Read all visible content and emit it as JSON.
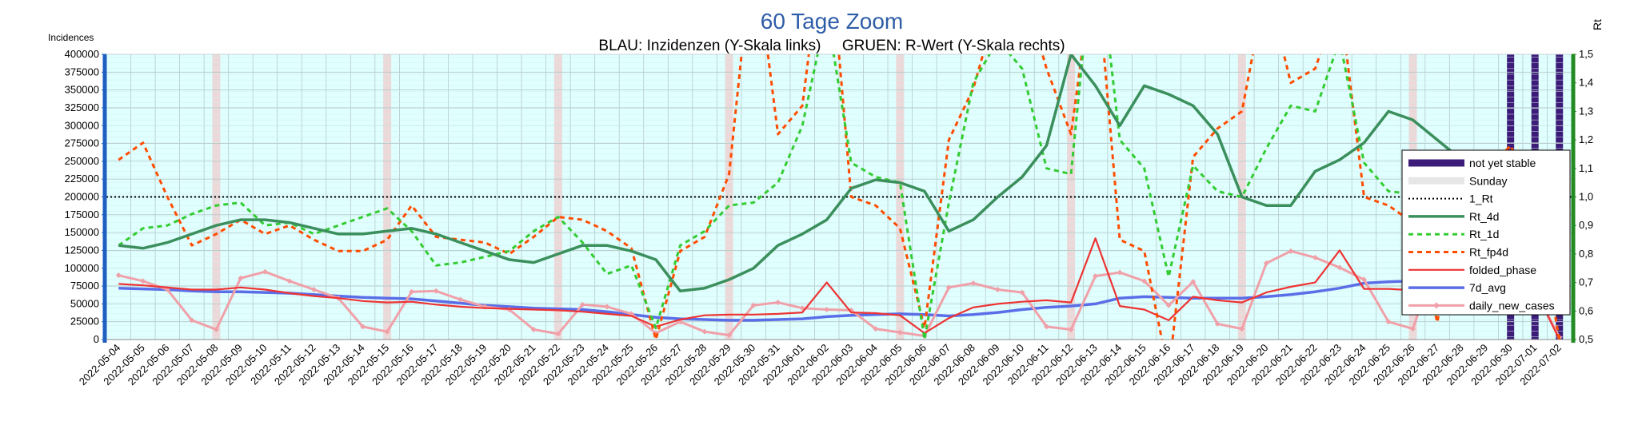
{
  "chart_data": {
    "type": "line",
    "title": "60 Tage Zoom",
    "subtitle": "BLAU: Inzidenzen (Y-Skala links)     GRUEN: R-Wert (Y-Skala rechts)",
    "ylabel_left": "Incidences",
    "ylabel_right": "Rt",
    "ylim_left": [
      0,
      400000
    ],
    "ylim_right": [
      0.5,
      1.5
    ],
    "yticks_left": [
      "0",
      "25000",
      "50000",
      "75000",
      "100000",
      "125000",
      "150000",
      "175000",
      "200000",
      "225000",
      "250000",
      "275000",
      "300000",
      "325000",
      "350000",
      "375000",
      "400000"
    ],
    "yticks_right": [
      "0,5",
      "0,6",
      "0,7",
      "0,8",
      "0,9",
      "1,0",
      "1,1",
      "1,2",
      "1,3",
      "1,4",
      "1,5"
    ],
    "x": [
      "2022-05-04",
      "2022-05-05",
      "2022-05-06",
      "2022-05-07",
      "2022-05-08",
      "2022-05-09",
      "2022-05-10",
      "2022-05-11",
      "2022-05-12",
      "2022-05-13",
      "2022-05-14",
      "2022-05-15",
      "2022-05-16",
      "2022-05-17",
      "2022-05-18",
      "2022-05-19",
      "2022-05-20",
      "2022-05-21",
      "2022-05-22",
      "2022-05-23",
      "2022-05-24",
      "2022-05-25",
      "2022-05-26",
      "2022-05-27",
      "2022-05-28",
      "2022-05-29",
      "2022-05-30",
      "2022-05-31",
      "2022-06-01",
      "2022-06-02",
      "2022-06-03",
      "2022-06-04",
      "2022-06-05",
      "2022-06-06",
      "2022-06-07",
      "2022-06-08",
      "2022-06-09",
      "2022-06-10",
      "2022-06-11",
      "2022-06-12",
      "2022-06-13",
      "2022-06-14",
      "2022-06-15",
      "2022-06-16",
      "2022-06-17",
      "2022-06-18",
      "2022-06-19",
      "2022-06-20",
      "2022-06-21",
      "2022-06-22",
      "2022-06-23",
      "2022-06-24",
      "2022-06-25",
      "2022-06-26",
      "2022-06-27",
      "2022-06-28",
      "2022-06-29",
      "2022-06-30",
      "2022-07-01",
      "2022-07-02"
    ],
    "sundays": [
      "2022-05-08",
      "2022-05-15",
      "2022-05-22",
      "2022-05-29",
      "2022-06-05",
      "2022-06-12",
      "2022-06-19",
      "2022-06-26"
    ],
    "not_yet_stable": [
      "2022-06-30",
      "2022-07-01",
      "2022-07-02"
    ],
    "reference_line": {
      "name": "1_Rt",
      "value": 1.0
    },
    "legend": [
      "not yet stable",
      "Sunday",
      "1_Rt",
      "Rt_4d",
      "Rt_1d",
      "Rt_fp4d",
      "folded_phase",
      "7d_avg",
      "daily_new_cases"
    ],
    "legend_position": "right",
    "grid": true,
    "series": [
      {
        "name": "Rt_4d",
        "axis": "right",
        "color": "#3a8f5c",
        "dash": "",
        "values": [
          0.83,
          0.82,
          0.84,
          0.87,
          0.9,
          0.92,
          0.92,
          0.91,
          0.89,
          0.87,
          0.87,
          0.88,
          0.89,
          0.87,
          0.84,
          0.81,
          0.78,
          0.77,
          0.8,
          0.83,
          0.83,
          0.81,
          0.78,
          0.67,
          0.68,
          0.71,
          0.75,
          0.83,
          0.87,
          0.92,
          1.03,
          1.06,
          1.05,
          1.02,
          0.88,
          0.92,
          1.0,
          1.07,
          1.18,
          1.5,
          1.39,
          1.25,
          1.39,
          1.36,
          1.32,
          1.22,
          1.0,
          0.97,
          0.97,
          1.09,
          1.13,
          1.19,
          1.3,
          1.27,
          1.2,
          1.13,
          1.05,
          1.05,
          1.05,
          0.98
        ]
      },
      {
        "name": "Rt_1d",
        "axis": "right",
        "color": "#33cc33",
        "dash": "6,5",
        "values": [
          0.83,
          0.89,
          0.9,
          0.94,
          0.97,
          0.98,
          0.9,
          0.91,
          0.87,
          0.9,
          0.93,
          0.96,
          0.88,
          0.76,
          0.77,
          0.79,
          0.81,
          0.88,
          0.93,
          0.84,
          0.73,
          0.76,
          0.54,
          0.83,
          0.88,
          0.97,
          0.98,
          1.05,
          1.25,
          1.65,
          1.12,
          1.07,
          1.05,
          0.5,
          0.98,
          1.4,
          1.55,
          1.45,
          1.1,
          1.08,
          1.95,
          1.2,
          1.1,
          0.72,
          1.11,
          1.02,
          1.0,
          1.17,
          1.32,
          1.3,
          1.55,
          1.12,
          1.02,
          1.01,
          1.06,
          1.07,
          1.03,
          0.98,
          0.85,
          0.83
        ]
      },
      {
        "name": "Rt_fp4d",
        "axis": "right",
        "color": "#ff4d00",
        "dash": "6,5",
        "values": [
          1.13,
          1.19,
          1.0,
          0.83,
          0.87,
          0.92,
          0.87,
          0.9,
          0.85,
          0.81,
          0.81,
          0.85,
          0.97,
          0.86,
          0.85,
          0.84,
          0.8,
          0.86,
          0.93,
          0.92,
          0.88,
          0.82,
          0.5,
          0.81,
          0.86,
          1.08,
          1.9,
          1.22,
          1.32,
          2.0,
          1.0,
          0.97,
          0.89,
          0.54,
          1.2,
          1.38,
          1.68,
          1.75,
          1.45,
          1.22,
          1.85,
          0.85,
          0.81,
          0.38,
          1.14,
          1.24,
          1.3,
          1.75,
          1.4,
          1.45,
          1.7,
          1.0,
          0.97,
          0.91,
          0.56,
          1.08,
          1.09,
          1.18,
          0.98,
          0.5
        ]
      },
      {
        "name": "folded_phase",
        "axis": "left",
        "color": "#ee3333",
        "dash": "",
        "values": [
          78000,
          76000,
          73000,
          70000,
          70000,
          73000,
          70000,
          65000,
          61000,
          58000,
          54000,
          52000,
          53000,
          49000,
          46000,
          44000,
          43000,
          42000,
          41000,
          39000,
          36000,
          33000,
          18000,
          28000,
          34000,
          35000,
          35000,
          36000,
          38000,
          80000,
          38000,
          37000,
          34000,
          9000,
          30000,
          45000,
          50000,
          53000,
          55000,
          52000,
          142000,
          47000,
          42000,
          27000,
          60000,
          55000,
          52000,
          66000,
          74000,
          80000,
          125000,
          71000,
          71000,
          69000,
          69000,
          72000,
          76000,
          82000,
          70000,
          0
        ]
      },
      {
        "name": "7d_avg",
        "axis": "left",
        "color": "#5a6ee8",
        "dash": "",
        "values": [
          72000,
          71000,
          70000,
          68000,
          67000,
          67000,
          66000,
          65000,
          63000,
          61000,
          59000,
          58000,
          57000,
          54000,
          51000,
          48000,
          46000,
          44000,
          43000,
          42000,
          39000,
          35000,
          31000,
          29000,
          28000,
          27000,
          27000,
          28000,
          29000,
          32000,
          34000,
          35000,
          36000,
          35000,
          33000,
          35000,
          38000,
          42000,
          45000,
          47000,
          50000,
          58000,
          60000,
          59000,
          58000,
          58000,
          58000,
          60000,
          63000,
          67000,
          72000,
          79000,
          81000,
          82000,
          82000,
          84000,
          86000,
          87000,
          84000,
          80000
        ]
      },
      {
        "name": "daily_new_cases",
        "axis": "left",
        "color": "#f0a0a8",
        "dash": "",
        "marker": "diamond",
        "values": [
          90000,
          82000,
          70000,
          27000,
          14000,
          86000,
          95000,
          82000,
          70000,
          58000,
          18000,
          11000,
          67000,
          68000,
          56000,
          46000,
          42000,
          14000,
          8000,
          49000,
          46000,
          36000,
          9000,
          25000,
          11000,
          6000,
          48000,
          52000,
          44000,
          42000,
          41000,
          15000,
          10000,
          5000,
          73000,
          79000,
          70000,
          66000,
          18000,
          14000,
          89000,
          94000,
          82000,
          48000,
          81000,
          22000,
          15000,
          107000,
          124000,
          115000,
          101000,
          84000,
          25000,
          15000,
          115000,
          136000,
          120000,
          104000,
          70000,
          3000
        ]
      }
    ]
  }
}
